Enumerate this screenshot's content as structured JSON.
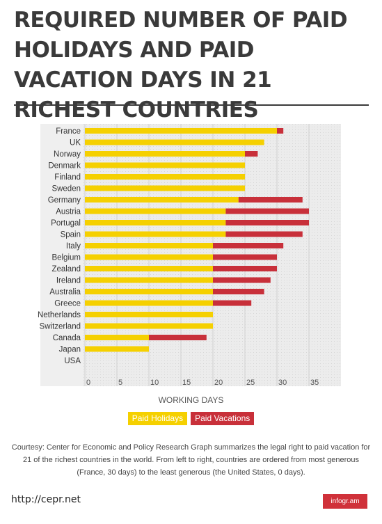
{
  "title": "REQUIRED NUMBER OF PAID HOLIDAYS AND PAID VACATION DAYS IN 21 RICHEST COUNTRIES",
  "colors": {
    "holidays": "#f5d000",
    "vacations": "#c8303a",
    "plot_bg": "#ececec"
  },
  "chart_data": {
    "type": "bar",
    "orientation": "horizontal",
    "stacked": true,
    "categories": [
      "France",
      "UK",
      "Norway",
      "Denmark",
      "Finland",
      "Sweden",
      "Germany",
      "Austria",
      "Portugal",
      "Spain",
      "Italy",
      "Belgium",
      "Zealand",
      "Ireland",
      "Australia",
      "Greece",
      "Netherlands",
      "Switzerland",
      "Canada",
      "Japan",
      "USA"
    ],
    "series": [
      {
        "name": "Paid Holidays",
        "color": "#f5d000",
        "values": [
          30,
          28,
          25,
          25,
          25,
          25,
          24,
          22,
          22,
          22,
          20,
          20,
          20,
          20,
          20,
          20,
          20,
          20,
          10,
          10,
          0
        ]
      },
      {
        "name": "Paid Vacations",
        "color": "#c8303a",
        "values": [
          1,
          0,
          2,
          0,
          0,
          0,
          10,
          13,
          13,
          12,
          11,
          10,
          10,
          9,
          8,
          6,
          0,
          0,
          9,
          0,
          0
        ]
      }
    ],
    "xlabel": "WORKING DAYS",
    "xticks": [
      0,
      5,
      10,
      15,
      20,
      25,
      30,
      35
    ],
    "xlim": [
      0,
      40
    ],
    "grid": true,
    "legend_position": "bottom"
  },
  "caption": "Courtesy: Center for Economic and Policy Research Graph summarizes the legal right to paid vacation for 21 of the richest countries in the world. From left to right, countries are ordered from most generous (France, 30 days) to the least generous (the United States, 0 days).",
  "source_link": "http://cepr.net",
  "brand": "infogr.am"
}
